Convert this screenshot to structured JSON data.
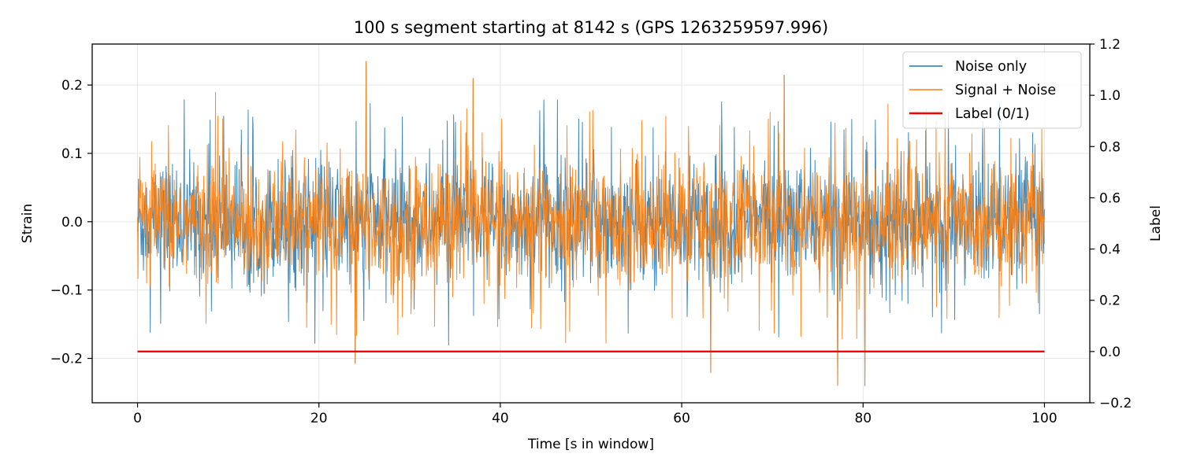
{
  "chart_data": {
    "type": "line",
    "title": "100 s segment starting at 8142 s (GPS 1263259597.996)",
    "xlabel": "Time [s in window]",
    "ylabel": "Strain",
    "y2label": "Label",
    "xlim": [
      -5,
      105
    ],
    "ylim": [
      -0.265,
      0.26
    ],
    "y2lim": [
      -0.2,
      1.2
    ],
    "x_ticks": [
      0,
      20,
      40,
      60,
      80,
      100
    ],
    "x_tick_labels": [
      "0",
      "20",
      "40",
      "60",
      "80",
      "100"
    ],
    "y_ticks": [
      -0.2,
      -0.1,
      0.0,
      0.1,
      0.2
    ],
    "y_tick_labels": [
      "−0.2",
      "−0.1",
      "0.0",
      "0.1",
      "0.2"
    ],
    "y2_ticks": [
      -0.2,
      0.0,
      0.2,
      0.4,
      0.6,
      0.8,
      1.0,
      1.2
    ],
    "y2_tick_labels": [
      "−0.2",
      "0.0",
      "0.2",
      "0.4",
      "0.6",
      "0.8",
      "1.0",
      "1.2"
    ],
    "grid": true,
    "legend_position": "top-right",
    "series": [
      {
        "name": "Noise only",
        "axis": "left",
        "color": "#1f77b4",
        "x_range": [
          0,
          100
        ],
        "approx_envelope": [
          -0.24,
          0.235
        ],
        "typical_band": [
          -0.1,
          0.12
        ],
        "peaks": [
          [
            25.2,
            0.235
          ],
          [
            71.3,
            0.215
          ],
          [
            37.0,
            0.21
          ],
          [
            77.2,
            -0.24
          ],
          [
            80.2,
            -0.241
          ],
          [
            63.2,
            -0.221
          ],
          [
            24.0,
            -0.208
          ]
        ]
      },
      {
        "name": "Signal + Noise",
        "axis": "left",
        "color": "#ff7f0e",
        "x_range": [
          0,
          100
        ],
        "approx_envelope": [
          -0.241,
          0.235
        ],
        "typical_band": [
          -0.1,
          0.12
        ],
        "peaks": [
          [
            25.2,
            0.235
          ],
          [
            71.3,
            0.215
          ],
          [
            37.0,
            0.21
          ],
          [
            8.6,
            0.19
          ],
          [
            77.2,
            -0.24
          ],
          [
            80.2,
            -0.241
          ],
          [
            63.2,
            -0.221
          ],
          [
            24.0,
            -0.208
          ]
        ]
      },
      {
        "name": "Label (0/1)",
        "axis": "right",
        "color": "#ff0000",
        "x": [
          0,
          100
        ],
        "values": [
          0,
          0
        ]
      }
    ]
  }
}
